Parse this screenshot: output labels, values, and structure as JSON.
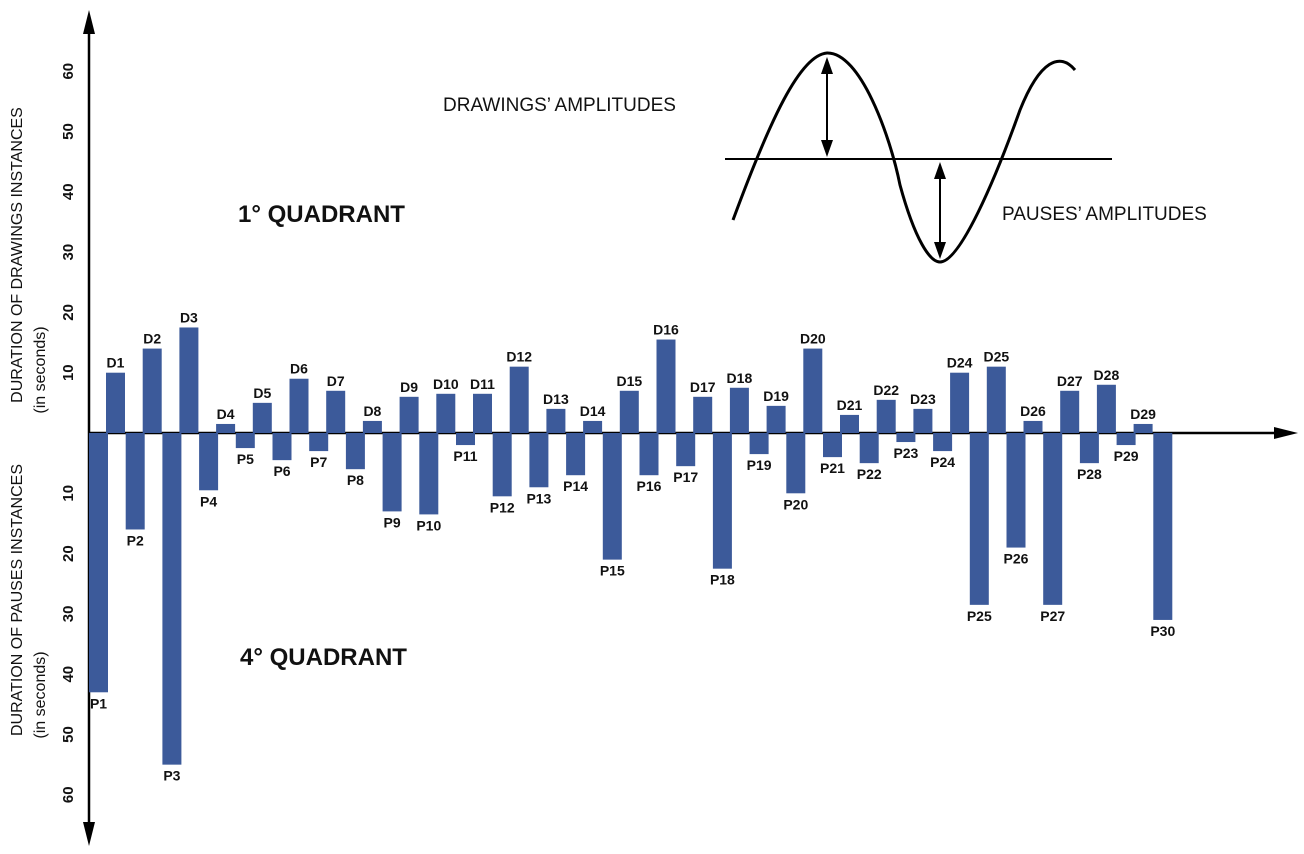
{
  "colors": {
    "bar": "#3c5a9a",
    "axis": "#000000"
  },
  "quadrant_labels": {
    "first": "1° QUADRANT",
    "fourth": "4° QUADRANT"
  },
  "axis_titles": {
    "upper_line1": "DURATION OF DRAWINGS INSTANCES",
    "upper_line2": "(in seconds)",
    "lower_line1": "DURATION OF PAUSES INSTANCES",
    "lower_line2": "(in seconds)"
  },
  "inset": {
    "drawings_label": "DRAWINGS’ AMPLITUDES",
    "pauses_label": "PAUSES’ AMPLITUDES"
  },
  "chart_data": {
    "type": "bar",
    "grid": false,
    "y_ticks_up": [
      "10",
      "20",
      "30",
      "40",
      "50",
      "60"
    ],
    "y_ticks_down": [
      "10",
      "20",
      "30",
      "40",
      "50",
      "60"
    ],
    "ylim": [
      -60,
      60
    ],
    "series": [
      {
        "name": "Drawings",
        "direction": "up",
        "labels": [
          "D1",
          "D2",
          "D3",
          "D4",
          "D5",
          "D6",
          "D7",
          "D8",
          "D9",
          "D10",
          "D11",
          "D12",
          "D13",
          "D14",
          "D15",
          "D16",
          "D17",
          "D18",
          "D19",
          "D20",
          "D21",
          "D22",
          "D23",
          "D24",
          "D25",
          "D26",
          "D27",
          "D28",
          "D29"
        ],
        "values": [
          10,
          14,
          17.5,
          1.5,
          5,
          9,
          7,
          2,
          6,
          6.5,
          6.5,
          11,
          4,
          2,
          7,
          15.5,
          6,
          7.5,
          4.5,
          14,
          3,
          5.5,
          4,
          10,
          11,
          2,
          7,
          8,
          1.5
        ]
      },
      {
        "name": "Pauses",
        "direction": "down",
        "labels": [
          "P1",
          "P2",
          "P3",
          "P4",
          "P5",
          "P6",
          "P7",
          "P8",
          "P9",
          "P10",
          "P11",
          "P12",
          "P13",
          "P14",
          "P15",
          "P16",
          "P17",
          "P18",
          "P19",
          "P20",
          "P21",
          "P22",
          "P23",
          "P24",
          "P25",
          "P26",
          "P27",
          "P28",
          "P29",
          "P30"
        ],
        "values": [
          43,
          16,
          55,
          9.5,
          2.5,
          4.5,
          3,
          6,
          13,
          13.5,
          2,
          10.5,
          9,
          7,
          21,
          7,
          5.5,
          22.5,
          3.5,
          10,
          4,
          5,
          1.5,
          3,
          28.5,
          19,
          28.5,
          5,
          2,
          31
        ]
      }
    ]
  }
}
